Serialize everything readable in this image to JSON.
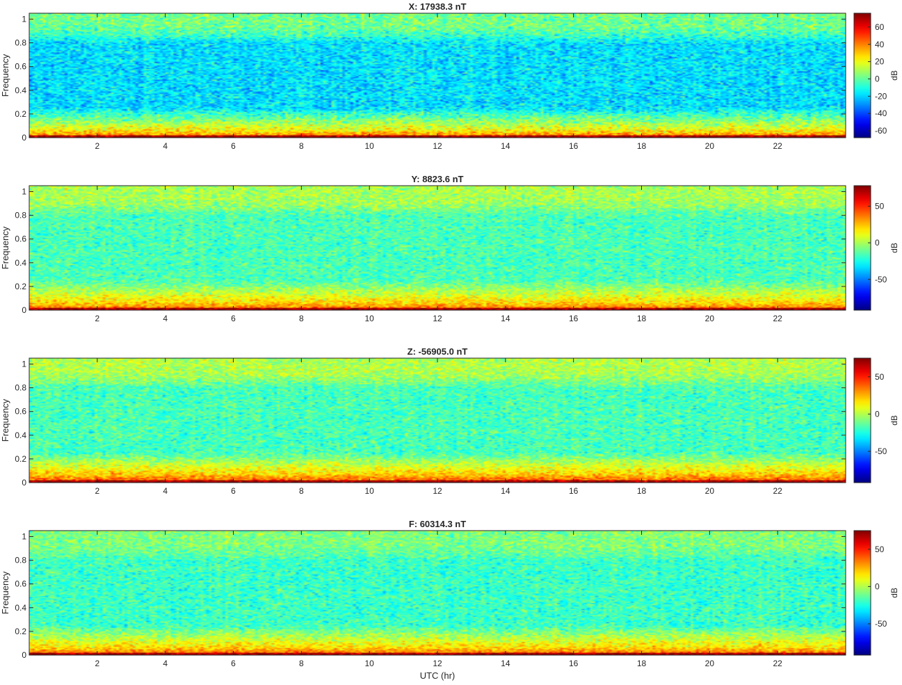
{
  "figure": {
    "xlabel": "UTC (hr)"
  },
  "chart_data": [
    {
      "type": "heatmap",
      "title": "X: 17938.3 nT",
      "ylabel": "Frequency",
      "xlabel": "",
      "xlim": [
        0,
        24
      ],
      "ylim": [
        0,
        1.05
      ],
      "xticks": [
        2,
        4,
        6,
        8,
        10,
        12,
        14,
        16,
        18,
        20,
        22
      ],
      "yticks": [
        0,
        0.2,
        0.4,
        0.6,
        0.8,
        1
      ],
      "colorbar": {
        "label": "dB",
        "range": [
          -68,
          76
        ],
        "ticks": [
          -60,
          -40,
          -20,
          0,
          20,
          40,
          60
        ]
      },
      "profile": {
        "dc_db": 72,
        "low_db": 22,
        "mid_db": -18,
        "high_db": 2,
        "noise_db": 14
      },
      "colormap": "jet"
    },
    {
      "type": "heatmap",
      "title": "Y: 8823.6 nT",
      "ylabel": "Frequency",
      "xlabel": "",
      "xlim": [
        0,
        24
      ],
      "ylim": [
        0,
        1.05
      ],
      "xticks": [
        2,
        4,
        6,
        8,
        10,
        12,
        14,
        16,
        18,
        20,
        22
      ],
      "yticks": [
        0,
        0.2,
        0.4,
        0.6,
        0.8,
        1
      ],
      "colorbar": {
        "label": "dB",
        "range": [
          -92,
          78
        ],
        "ticks": [
          -50,
          0,
          50
        ]
      },
      "profile": {
        "dc_db": 72,
        "low_db": 20,
        "mid_db": -16,
        "high_db": 0,
        "noise_db": 14
      },
      "colormap": "jet"
    },
    {
      "type": "heatmap",
      "title": "Z: -56905.0 nT",
      "ylabel": "Frequency",
      "xlabel": "",
      "xlim": [
        0,
        24
      ],
      "ylim": [
        0,
        1.05
      ],
      "xticks": [
        2,
        4,
        6,
        8,
        10,
        12,
        14,
        16,
        18,
        20,
        22
      ],
      "yticks": [
        0,
        0.2,
        0.4,
        0.6,
        0.8,
        1
      ],
      "colorbar": {
        "label": "dB",
        "range": [
          -92,
          75
        ],
        "ticks": [
          -50,
          0,
          50
        ]
      },
      "profile": {
        "dc_db": 70,
        "low_db": 22,
        "mid_db": -18,
        "high_db": 0,
        "noise_db": 14
      },
      "colormap": "jet"
    },
    {
      "type": "heatmap",
      "title": "F: 60314.3 nT",
      "ylabel": "Frequency",
      "xlabel": "UTC (hr)",
      "xlim": [
        0,
        24
      ],
      "ylim": [
        0,
        1.05
      ],
      "xticks": [
        2,
        4,
        6,
        8,
        10,
        12,
        14,
        16,
        18,
        20,
        22
      ],
      "yticks": [
        0,
        0.2,
        0.4,
        0.6,
        0.8,
        1
      ],
      "colorbar": {
        "label": "dB",
        "range": [
          -92,
          75
        ],
        "ticks": [
          -50,
          0,
          50
        ]
      },
      "profile": {
        "dc_db": 70,
        "low_db": 18,
        "mid_db": -20,
        "high_db": -8,
        "noise_db": 14
      },
      "colormap": "jet"
    }
  ]
}
